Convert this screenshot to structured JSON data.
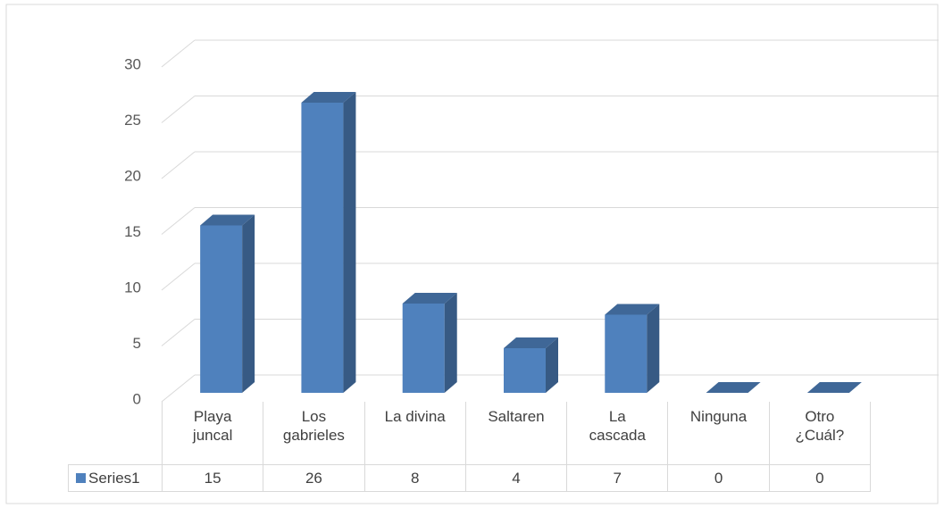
{
  "chart_data": {
    "type": "bar3d",
    "categories": [
      "Playa\njuncal",
      "Los\ngabrieles",
      "La divina",
      "Saltaren",
      "La\ncascada",
      "Ninguna",
      "Otro\n¿Cuál?"
    ],
    "series": [
      {
        "name": "Series1",
        "color": "#4f81bd",
        "values": [
          15,
          26,
          8,
          4,
          7,
          0,
          0
        ]
      }
    ],
    "ylim": [
      0,
      30
    ],
    "yticks": [
      0,
      5,
      10,
      15,
      20,
      25,
      30
    ],
    "grid": true,
    "data_table": true
  }
}
